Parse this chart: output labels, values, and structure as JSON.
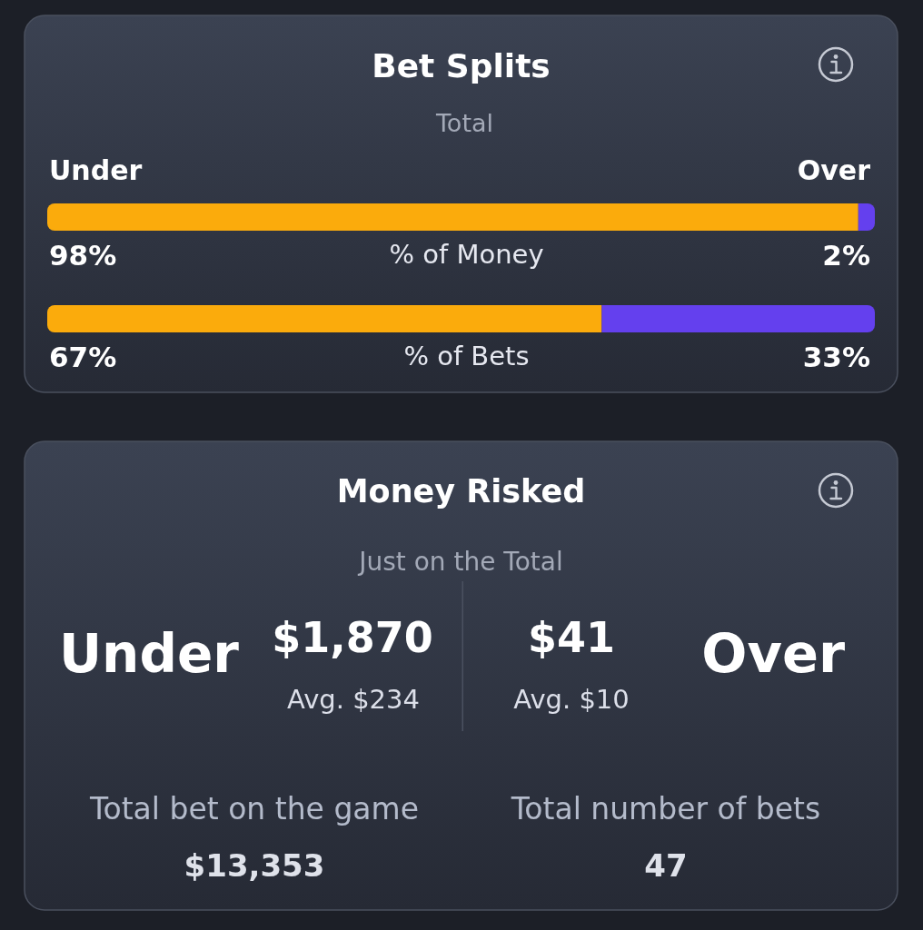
{
  "chart_data": [
    {
      "type": "bar",
      "title": "Bet Splits",
      "subtitle": "Total",
      "orientation": "horizontal",
      "stacked": true,
      "legend": "top",
      "categories": [
        "% of Money",
        "% of Bets"
      ],
      "series": [
        {
          "name": "Under",
          "color": "#fbab0c",
          "values": [
            98,
            67
          ],
          "value_labels": [
            "98%",
            "67%"
          ]
        },
        {
          "name": "Over",
          "color": "#6440ee",
          "values": [
            2,
            33
          ],
          "value_labels": [
            "2%",
            "33%"
          ]
        }
      ]
    },
    {
      "type": "other",
      "title": "Money Risked",
      "subtitle": "Just on the Total",
      "annotations": [
        "Under",
        "$1,870",
        "Avg. $234",
        "$41",
        "Avg. $10",
        "Over",
        "Total bet on the game",
        "$13,353",
        "Total number of bets",
        "47"
      ]
    }
  ]
}
